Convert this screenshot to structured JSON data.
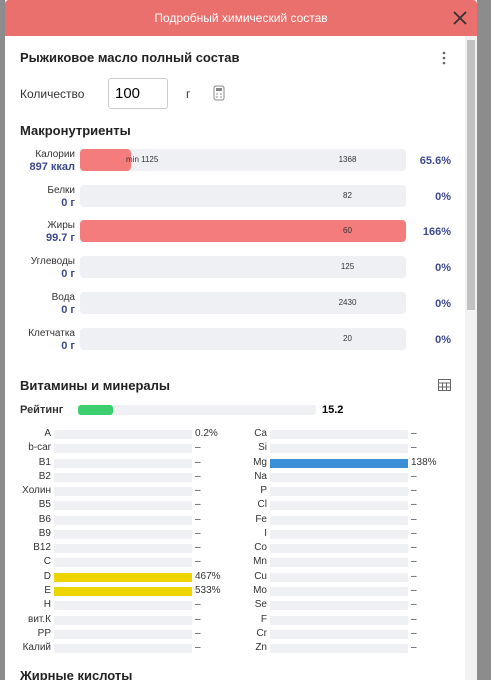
{
  "header": {
    "title": "Подробный химический состав"
  },
  "product": {
    "title": "Рыжиковое масло полный состав",
    "quantity_label": "Количество",
    "quantity": "100",
    "unit": "г"
  },
  "macros": {
    "title": "Макронутриенты",
    "rows": [
      {
        "name": "Калории",
        "amount": "897 ккал",
        "norm_min": "min 1125",
        "norm": "1368",
        "percent": "65.6%"
      },
      {
        "name": "Белки",
        "amount": "0 г",
        "norm": "82",
        "percent": "0%"
      },
      {
        "name": "Жиры",
        "amount": "99.7 г",
        "norm": "60",
        "percent": "166%"
      },
      {
        "name": "Углеводы",
        "amount": "0 г",
        "norm": "125",
        "percent": "0%"
      },
      {
        "name": "Вода",
        "amount": "0 г",
        "norm": "2430",
        "percent": "0%"
      },
      {
        "name": "Клетчатка",
        "amount": "0 г",
        "norm": "20",
        "percent": "0%"
      }
    ]
  },
  "vitamins": {
    "title": "Витамины и минералы",
    "rating_label": "Рейтинг",
    "rating": "15.2",
    "left": [
      {
        "name": "A",
        "value": "0.2%"
      },
      {
        "name": "b-car",
        "value": "–"
      },
      {
        "name": "B1",
        "value": "–"
      },
      {
        "name": "B2",
        "value": "–"
      },
      {
        "name": "Холин",
        "value": "–"
      },
      {
        "name": "B5",
        "value": "–"
      },
      {
        "name": "B6",
        "value": "–"
      },
      {
        "name": "B9",
        "value": "–"
      },
      {
        "name": "B12",
        "value": "–"
      },
      {
        "name": "C",
        "value": "–"
      },
      {
        "name": "D",
        "value": "467%"
      },
      {
        "name": "E",
        "value": "533%"
      },
      {
        "name": "H",
        "value": "–"
      },
      {
        "name": "вит.К",
        "value": "–"
      },
      {
        "name": "PP",
        "value": "–"
      },
      {
        "name": "Калий",
        "value": "–"
      }
    ],
    "right": [
      {
        "name": "Ca",
        "value": "–"
      },
      {
        "name": "Si",
        "value": "–"
      },
      {
        "name": "Mg",
        "value": "138%"
      },
      {
        "name": "Na",
        "value": "–"
      },
      {
        "name": "P",
        "value": "–"
      },
      {
        "name": "Cl",
        "value": "–"
      },
      {
        "name": "Fe",
        "value": "–"
      },
      {
        "name": "I",
        "value": "–"
      },
      {
        "name": "Co",
        "value": "–"
      },
      {
        "name": "Mn",
        "value": "–"
      },
      {
        "name": "Cu",
        "value": "–"
      },
      {
        "name": "Mo",
        "value": "–"
      },
      {
        "name": "Se",
        "value": "–"
      },
      {
        "name": "F",
        "value": "–"
      },
      {
        "name": "Cr",
        "value": "–"
      },
      {
        "name": "Zn",
        "value": "–"
      }
    ]
  },
  "next_section": "Жирные кислоты"
}
